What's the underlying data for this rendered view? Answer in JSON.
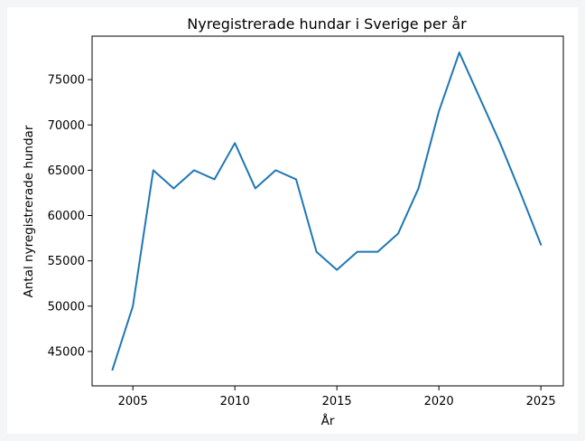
{
  "chart_data": {
    "type": "line",
    "title": "Nyregistrerade hundar i Sverige per år",
    "xlabel": "År",
    "ylabel": "Antal nyregistrerade hundar",
    "x": [
      2004,
      2005,
      2006,
      2007,
      2008,
      2009,
      2010,
      2011,
      2012,
      2013,
      2014,
      2015,
      2016,
      2017,
      2018,
      2019,
      2020,
      2021,
      2022,
      2023,
      2024,
      2025
    ],
    "series": [
      {
        "values": [
          43000,
          50000,
          65000,
          63000,
          65000,
          64000,
          68000,
          63000,
          65000,
          64000,
          56000,
          54000,
          56000,
          56000,
          58000,
          63000,
          71500,
          78000,
          73000,
          68000,
          62500,
          56800
        ],
        "color": "#1f77b4"
      }
    ],
    "xlim": [
      2003,
      2026.1
    ],
    "ylim": [
      41200,
      79800
    ],
    "xticks": [
      "2005",
      "2010",
      "2015",
      "2020",
      "2025"
    ],
    "yticks": [
      "45000",
      "50000",
      "55000",
      "60000",
      "65000",
      "70000",
      "75000"
    ],
    "grid": false,
    "legend": "none"
  }
}
